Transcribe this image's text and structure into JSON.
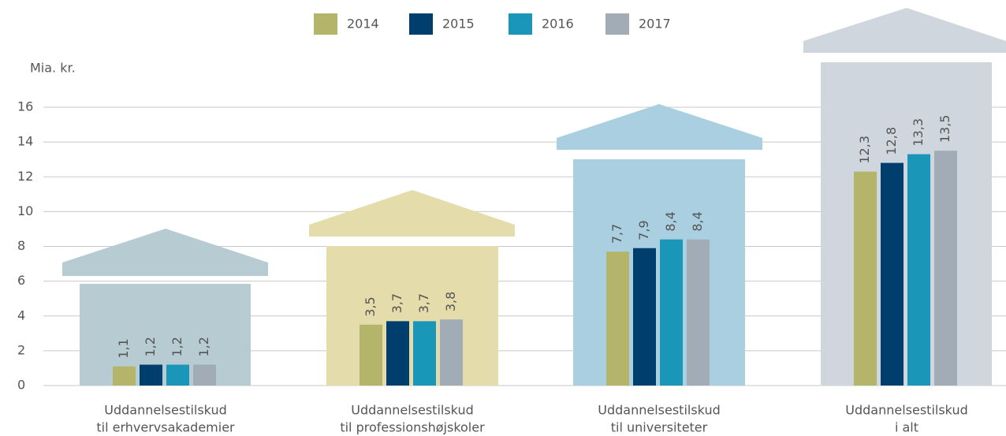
{
  "chart_data": {
    "type": "bar",
    "y_label": "Mia. kr.",
    "categories": [
      [
        "Uddannelsestilskud",
        "til erhvervsakademier"
      ],
      [
        "Uddannelsestilskud",
        "til professionshøjskoler"
      ],
      [
        "Uddannelsestilskud",
        "til universiteter"
      ],
      [
        "Uddannelsestilskud",
        "i alt"
      ]
    ],
    "category_colors": [
      "#17707f",
      "#b3a52b",
      "#0f5a72",
      "#8d979f"
    ],
    "series": [
      {
        "name": "2014",
        "color": "#b4b56a",
        "values": [
          1.1,
          3.5,
          7.7,
          12.3
        ],
        "value_labels": [
          "1,1",
          "3,5",
          "7,7",
          "12,3"
        ]
      },
      {
        "name": "2015",
        "color": "#003e6e",
        "values": [
          1.2,
          3.7,
          7.9,
          12.8
        ],
        "value_labels": [
          "1,2",
          "3,7",
          "7,9",
          "12,8"
        ]
      },
      {
        "name": "2016",
        "color": "#1a97b8",
        "values": [
          1.2,
          3.7,
          8.4,
          13.3
        ],
        "value_labels": [
          "1,2",
          "3,7",
          "8,4",
          "13,3"
        ]
      },
      {
        "name": "2017",
        "color": "#a2acb7",
        "values": [
          1.2,
          3.8,
          8.4,
          13.5
        ],
        "value_labels": [
          "1,2",
          "3,8",
          "8,4",
          "13,5"
        ]
      }
    ],
    "value_label_color": "#1a97b8",
    "ylim": [
      0,
      16
    ],
    "yticks": [
      0,
      2,
      4,
      6,
      8,
      10,
      12,
      14,
      16
    ],
    "grid": true,
    "legend": "top"
  }
}
